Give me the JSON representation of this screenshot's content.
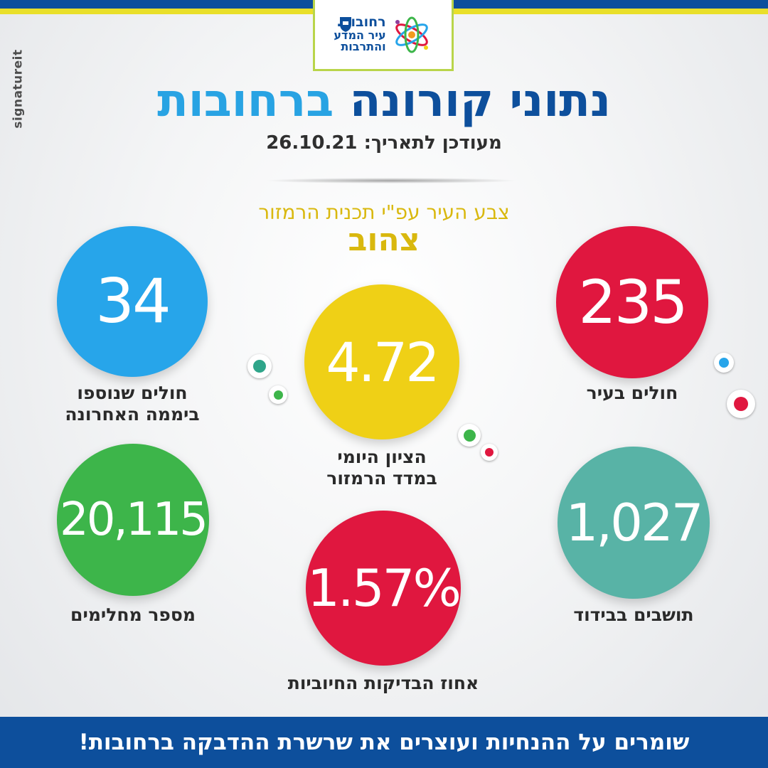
{
  "header": {
    "logo": {
      "line1": "רחובות.",
      "line2": "עיר המדע",
      "line3": "והתרבות"
    },
    "side_brand": "signatureit",
    "title_part1": "נתוני קורונה",
    "title_part2": "ברחובות",
    "subtitle": "מעודכן לתאריך: 26.10.21"
  },
  "traffic_light": {
    "label": "צבע העיר עפ\"י תכנית הרמזור",
    "value": "צהוב"
  },
  "stats": {
    "sick_in_city": {
      "value": "235",
      "label_line1": "חולים בעיר",
      "label_line2": "",
      "color": "#e0173f"
    },
    "daily_score": {
      "value": "4.72",
      "label_line1": "הציון היומי",
      "label_line2": "במדד הרמזור",
      "color": "#efd016"
    },
    "new_last_day": {
      "value": "34",
      "label_line1": "חולים שנוספו",
      "label_line2": "ביממה האחרונה",
      "color": "#27a5ea"
    },
    "isolation": {
      "value": "1,027",
      "label_line1": "תושבים בבידוד",
      "label_line2": "",
      "color": "#58b3a6"
    },
    "positive_rate": {
      "value": "1.57%",
      "label_line1": "אחוז הבדיקות החיוביות",
      "label_line2": "",
      "color": "#e0173f"
    },
    "recovered": {
      "value": "20,115",
      "label_line1": "מספר מחלימים",
      "label_line2": "",
      "color": "#3db54a"
    }
  },
  "decor_colors": {
    "teal": "#2fa58a",
    "green": "#3db54a",
    "red": "#e0173f",
    "blue": "#27a5ea"
  },
  "footer": {
    "text": "שומרים על ההנחיות ועוצרים את שרשרת ההדבקה ברחובות!"
  }
}
